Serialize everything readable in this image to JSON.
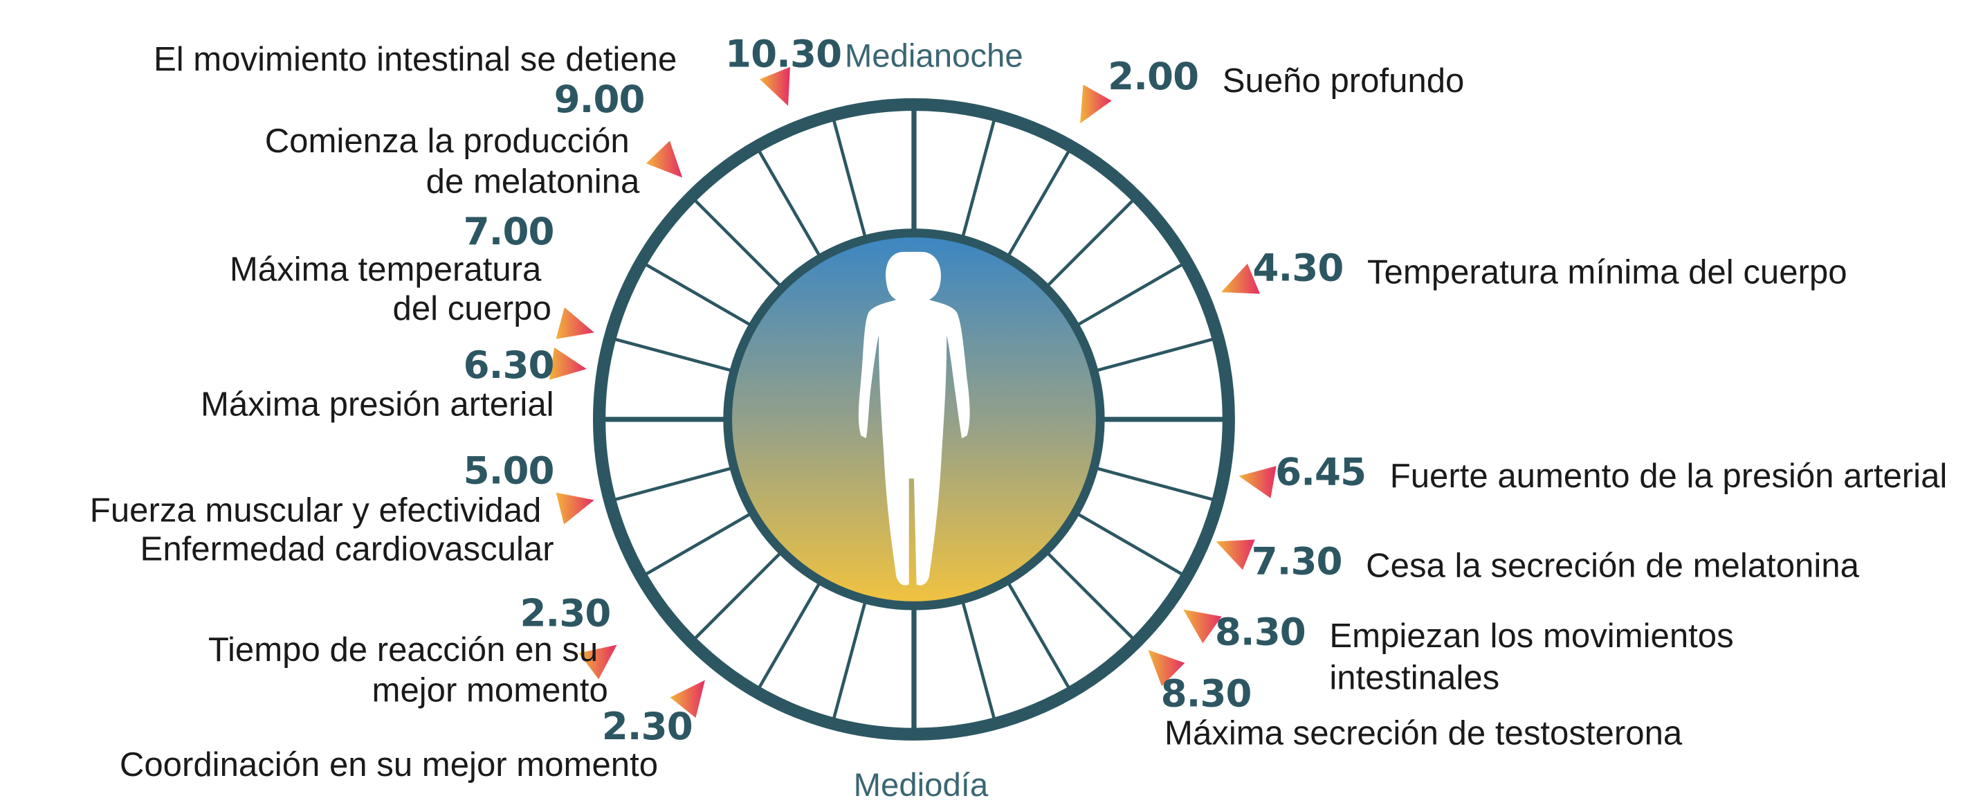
{
  "clock": {
    "top_label": "Medianoche",
    "bottom_label": "Mediodía",
    "ring_color": "#2c5762",
    "gradient_top": "#3a86c3",
    "gradient_bottom": "#f2c33f",
    "arrow_color_start": "#f2b33a",
    "arrow_color_end": "#e32e64",
    "center_icon": "human-figure-icon"
  },
  "events": [
    {
      "time": "10.30",
      "text": "El movimiento intestinal se detiene"
    },
    {
      "time": "2.00",
      "text": "Sueño profundo"
    },
    {
      "time": "9.00",
      "text": [
        "Comienza la producción",
        "de melatonina"
      ]
    },
    {
      "time": "4.30",
      "text": "Temperatura mínima del cuerpo"
    },
    {
      "time": "7.00",
      "text": [
        "Máxima temperatura",
        "del cuerpo"
      ]
    },
    {
      "time": "6.30",
      "text": "Máxima presión arterial"
    },
    {
      "time": "6.45",
      "text": "Fuerte aumento de la presión arterial"
    },
    {
      "time": "5.00",
      "text": [
        "Fuerza muscular y efectividad",
        "Enfermedad cardiovascular"
      ]
    },
    {
      "time": "7.30",
      "text": "Cesa la secreción de melatonina"
    },
    {
      "time": "8.30",
      "text": [
        "Empiezan los movimientos",
        "intestinales"
      ]
    },
    {
      "time": "2.30",
      "text": [
        "Tiempo de reacción en su",
        "mejor momento"
      ]
    },
    {
      "time": "8.30",
      "text": "Máxima secreción de testosterona"
    },
    {
      "time": "2.30",
      "text": "Coordinación en su mejor momento"
    }
  ]
}
